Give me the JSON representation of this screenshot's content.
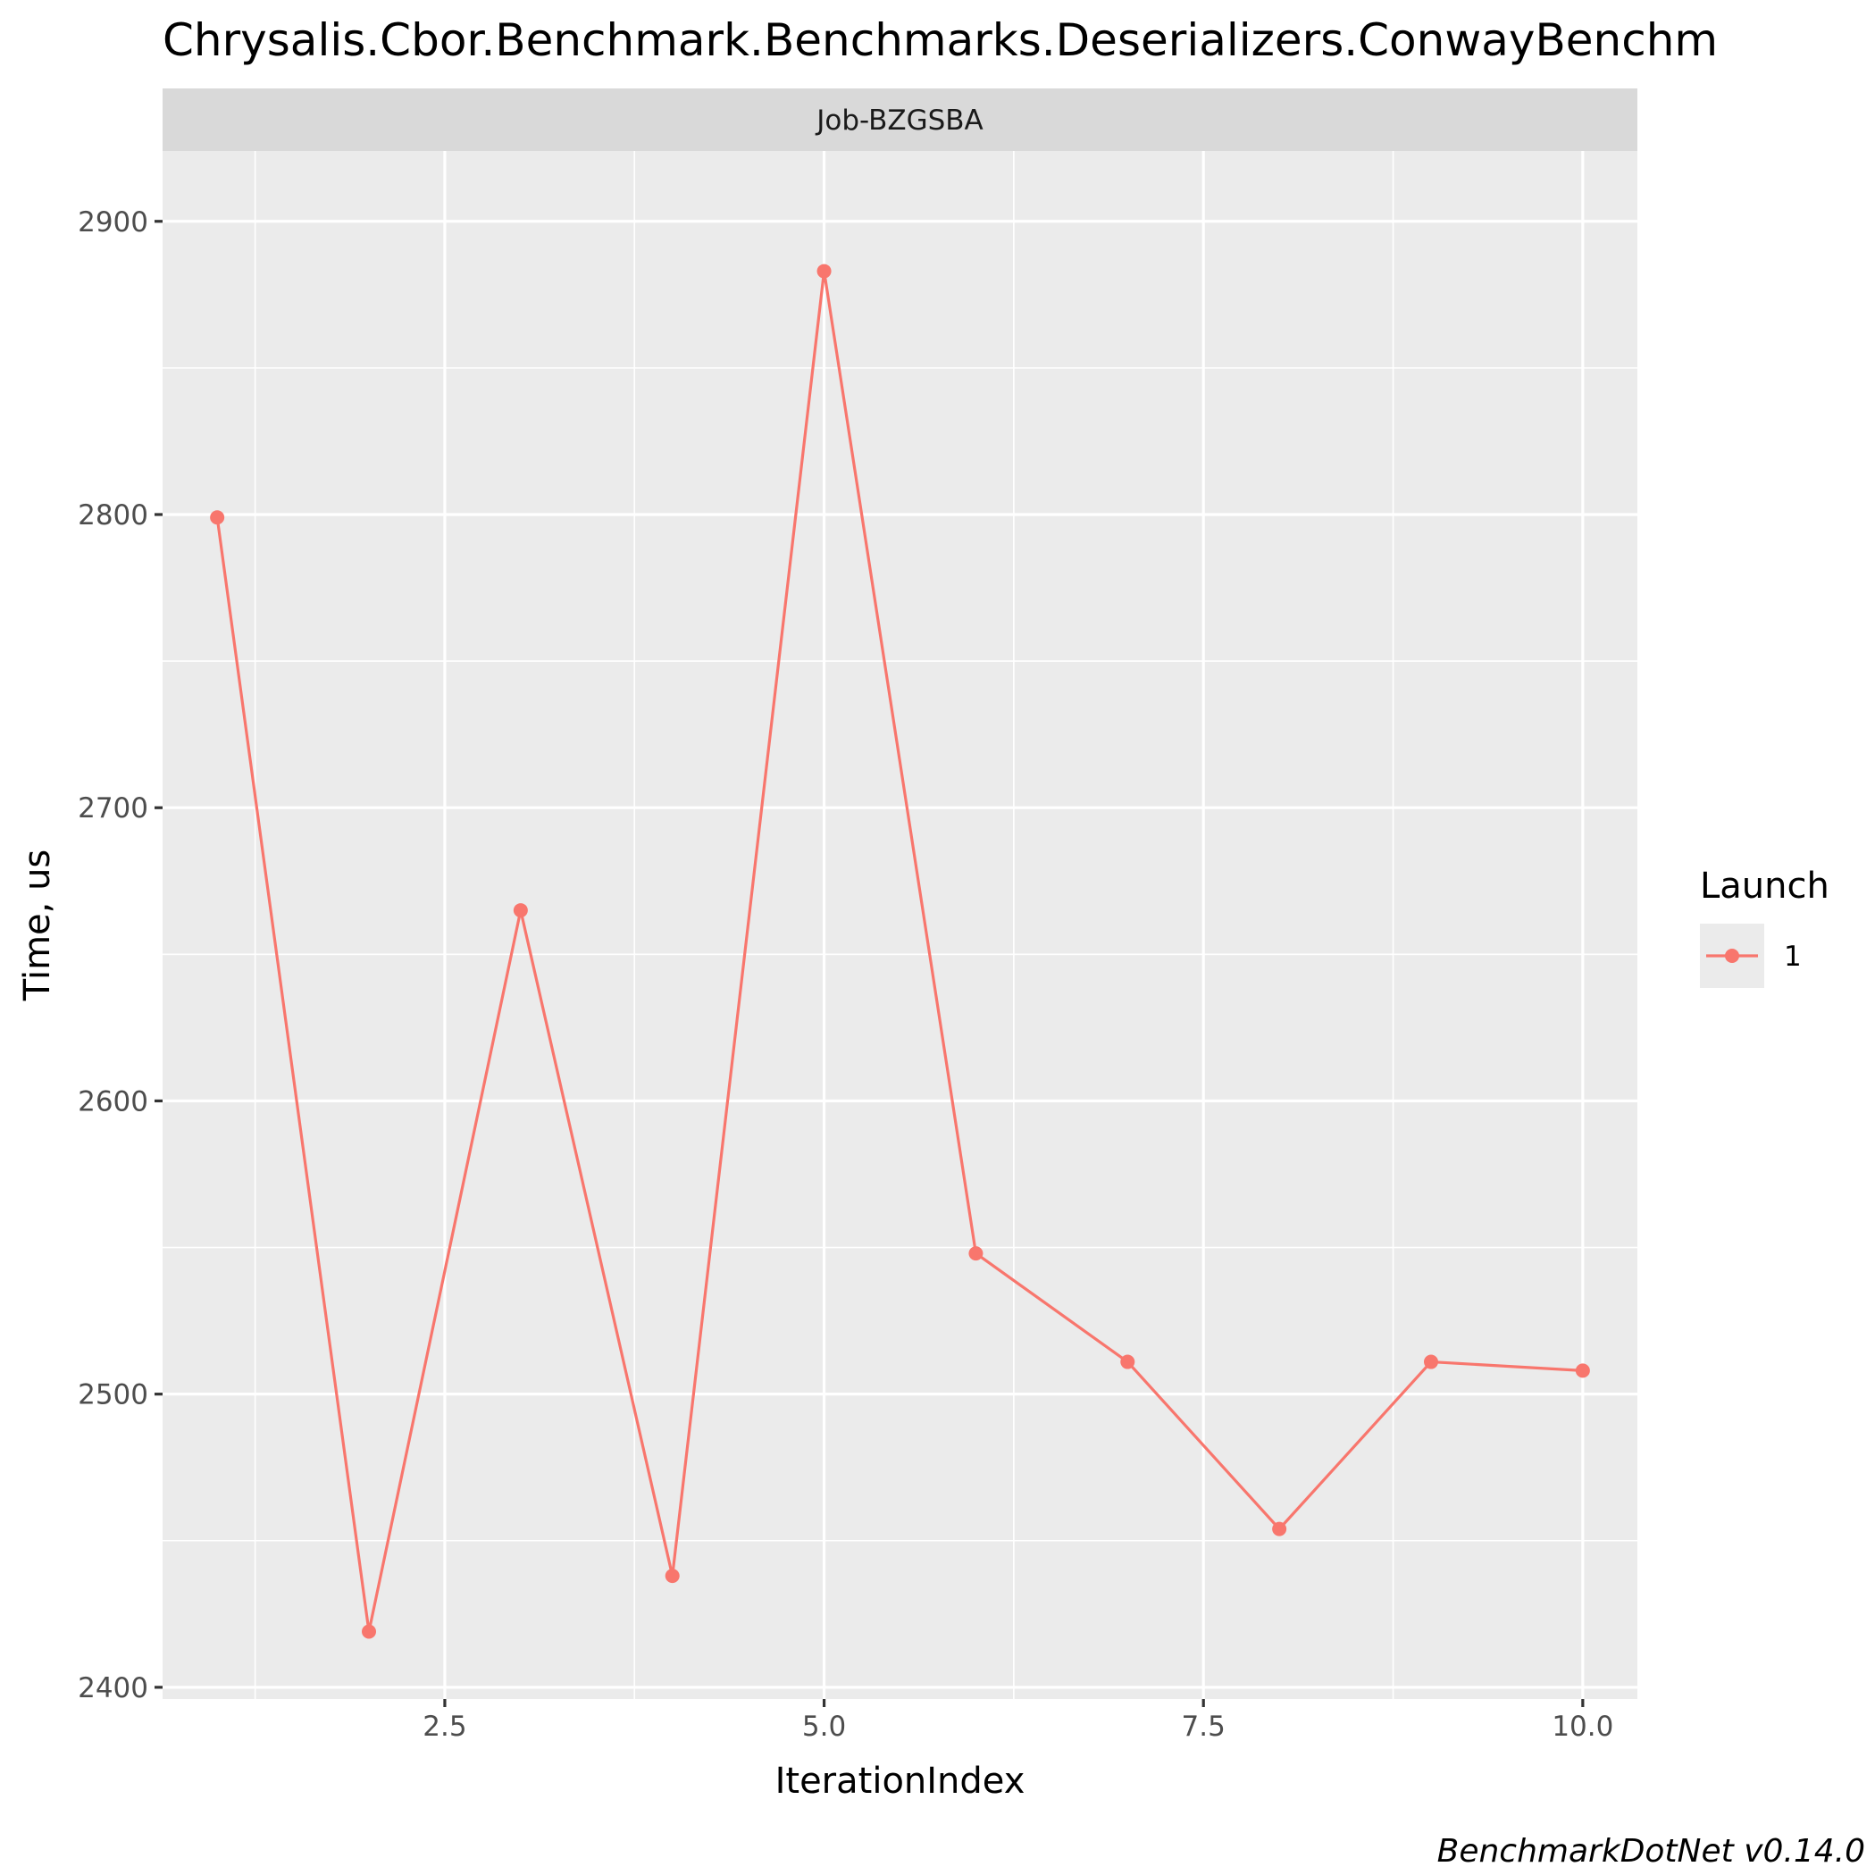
{
  "chart_data": {
    "type": "line",
    "title": "Chrysalis.Cbor.Benchmark.Benchmarks.Deserializers.ConwayBenchm",
    "facet": "Job-BZGSBA",
    "xlabel": "IterationIndex",
    "ylabel": "Time, us",
    "caption": "BenchmarkDotNet v0.14.0",
    "xlim": [
      0.64,
      10.36
    ],
    "ylim": [
      2396,
      2924
    ],
    "x_ticks": [
      2.5,
      5.0,
      7.5,
      10.0
    ],
    "x_tick_labels": [
      "2.5",
      "5.0",
      "7.5",
      "10.0"
    ],
    "y_ticks": [
      2400,
      2500,
      2600,
      2700,
      2800,
      2900
    ],
    "y_tick_labels": [
      "2400",
      "2500",
      "2600",
      "2700",
      "2800",
      "2900"
    ],
    "grid": true,
    "legend": {
      "title": "Launch",
      "position": "right",
      "entries": [
        "1"
      ]
    },
    "series": [
      {
        "name": "1",
        "color": "#F8766D",
        "x": [
          1,
          2,
          3,
          4,
          5,
          6,
          7,
          8,
          9,
          10
        ],
        "y": [
          2799,
          2419,
          2665,
          2438,
          2883,
          2548,
          2511,
          2454,
          2511,
          2508
        ]
      }
    ]
  }
}
